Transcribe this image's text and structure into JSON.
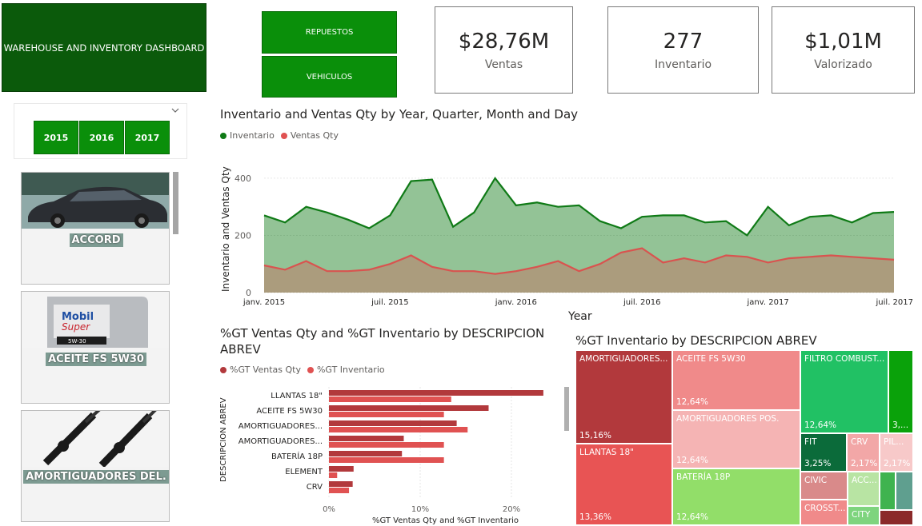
{
  "header": {
    "title": "WAREHOUSE AND INVENTORY DASHBOARD"
  },
  "nav": {
    "repuestos": "REPUESTOS",
    "vehiculos": "VEHICULOS"
  },
  "kpis": [
    {
      "value": "$28,76M",
      "label": "Ventas"
    },
    {
      "value": "277",
      "label": "Inventario"
    },
    {
      "value": "$1,01M",
      "label": "Valorizado"
    }
  ],
  "year_slicer": {
    "years": [
      "2015",
      "2016",
      "2017"
    ]
  },
  "cards": [
    {
      "label": "ACCORD"
    },
    {
      "label": "ACEITE FS 5W30",
      "brand": "Mobil",
      "brand2": "Super",
      "grade": "5W-30"
    },
    {
      "label": "AMORTIGUADORES DEL."
    }
  ],
  "colors": {
    "green": "#0f7a16",
    "red": "#e05252",
    "dark_red": "#b2393c",
    "nav_green": "#0a8f0a",
    "header_green": "#0b5a0b"
  },
  "line_chart": {
    "title": "Inventario and Ventas Qty by Year, Quarter, Month and Day",
    "ylabel": "Inventario and Ventas Qty",
    "xlabel": "Year",
    "legend": [
      "Inventario",
      "Ventas Qty"
    ],
    "y_ticks": [
      "0",
      "200",
      "400"
    ],
    "x_ticks": [
      "janv. 2015",
      "juil. 2015",
      "janv. 2016",
      "juil. 2016",
      "janv. 2017",
      "juil. 2017"
    ]
  },
  "bar_chart": {
    "title": "%GT Ventas Qty and %GT Inventario by DESCRIPCION ABREV",
    "legend": [
      "%GT Ventas Qty",
      "%GT Inventario"
    ],
    "ylabel": "DESCRIPCION ABREV",
    "xlabel": "%GT Ventas Qty and %GT Inventario",
    "x_ticks": [
      "0%",
      "10%",
      "20%"
    ]
  },
  "treemap": {
    "title": "%GT Inventario by DESCRIPCION ABREV",
    "cells": [
      {
        "name": "AMORTIGUADORES...",
        "pct": "15,16%"
      },
      {
        "name": "LLANTAS 18\"",
        "pct": "13,36%"
      },
      {
        "name": "ACEITE FS 5W30",
        "pct": "12,64%"
      },
      {
        "name": "AMORTIGUADORES POS.",
        "pct": "12,64%"
      },
      {
        "name": "BATERÍA 18P",
        "pct": "12,64%"
      },
      {
        "name": "FILTRO COMBUST...",
        "pct": "12,64%"
      },
      {
        "name": "",
        "pct": "3,..."
      },
      {
        "name": "FIT",
        "pct": "3,25%"
      },
      {
        "name": "CRV",
        "pct": "2,17%"
      },
      {
        "name": "PIL...",
        "pct": "2,17%"
      },
      {
        "name": "CIVIC",
        "pct": ""
      },
      {
        "name": "ACC...",
        "pct": ""
      },
      {
        "name": "CROSST...",
        "pct": ""
      },
      {
        "name": "CITY",
        "pct": ""
      }
    ]
  },
  "chart_data": [
    {
      "type": "area",
      "title": "Inventario and Ventas Qty by Year, Quarter, Month and Day",
      "xlabel": "Year",
      "ylabel": "Inventario and Ventas Qty",
      "x": [
        "2015-01",
        "2015-02",
        "2015-03",
        "2015-04",
        "2015-05",
        "2015-06",
        "2015-07",
        "2015-08",
        "2015-09",
        "2015-10",
        "2015-11",
        "2015-12",
        "2016-01",
        "2016-02",
        "2016-03",
        "2016-04",
        "2016-05",
        "2016-06",
        "2016-07",
        "2016-08",
        "2016-09",
        "2016-10",
        "2016-11",
        "2016-12",
        "2017-01",
        "2017-02",
        "2017-03",
        "2017-04",
        "2017-05",
        "2017-06",
        "2017-07"
      ],
      "series": [
        {
          "name": "Inventario",
          "values": [
            270,
            245,
            300,
            280,
            255,
            225,
            270,
            390,
            395,
            230,
            280,
            400,
            305,
            315,
            300,
            305,
            250,
            225,
            265,
            270,
            270,
            245,
            250,
            200,
            300,
            235,
            265,
            270,
            245,
            278,
            282
          ]
        },
        {
          "name": "Ventas Qty",
          "values": [
            95,
            80,
            110,
            75,
            75,
            80,
            100,
            130,
            90,
            75,
            75,
            65,
            75,
            90,
            110,
            75,
            100,
            140,
            155,
            105,
            120,
            105,
            130,
            125,
            105,
            120,
            125,
            130,
            125,
            120,
            115
          ]
        }
      ],
      "ylim": [
        0,
        450
      ],
      "legend": "top-left",
      "grid": true
    },
    {
      "type": "bar",
      "title": "%GT Ventas Qty and %GT Inventario by DESCRIPCION ABREV",
      "xlabel": "%GT Ventas Qty and %GT Inventario",
      "ylabel": "DESCRIPCION ABREV",
      "categories": [
        "LLANTAS 18\"",
        "ACEITE FS 5W30",
        "AMORTIGUADORES...",
        "AMORTIGUADORES...",
        "BATERÍA 18P",
        "ELEMENT",
        "CRV"
      ],
      "series": [
        {
          "name": "%GT Ventas Qty",
          "values": [
            23.5,
            17.5,
            14.0,
            8.2,
            8.0,
            2.7,
            2.6
          ]
        },
        {
          "name": "%GT Inventario",
          "values": [
            13.4,
            12.6,
            15.2,
            12.6,
            12.6,
            0.9,
            2.2
          ]
        }
      ],
      "xlim": [
        0,
        25
      ],
      "orientation": "horizontal",
      "legend": "top-left"
    },
    {
      "type": "treemap",
      "title": "%GT Inventario by DESCRIPCION ABREV",
      "categories": [
        "AMORTIGUADORES...",
        "LLANTAS 18\"",
        "ACEITE FS 5W30",
        "AMORTIGUADORES POS.",
        "BATERÍA 18P",
        "FILTRO COMBUST...",
        "FIT",
        "CRV",
        "PIL..."
      ],
      "values": [
        15.16,
        13.36,
        12.64,
        12.64,
        12.64,
        12.64,
        3.25,
        2.17,
        2.17
      ]
    }
  ]
}
